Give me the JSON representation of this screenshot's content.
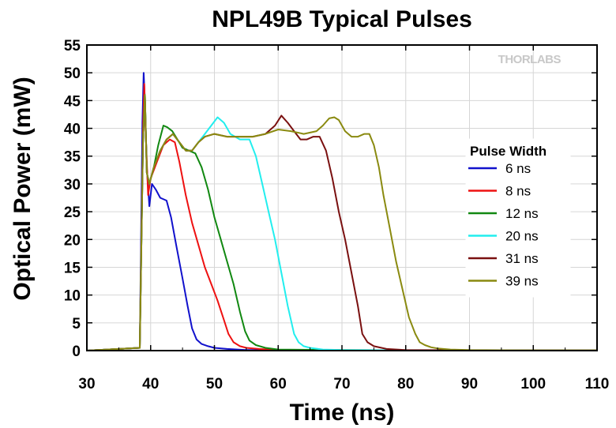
{
  "chart_data": {
    "type": "line",
    "title": "NPL49B Typical Pulses",
    "xlabel": "Time (ns)",
    "ylabel": "Optical Power (mW)",
    "xlim": [
      30,
      110
    ],
    "ylim": [
      0,
      55
    ],
    "xticks": [
      30,
      40,
      50,
      60,
      70,
      80,
      90,
      100,
      110
    ],
    "yticks": [
      0,
      5,
      10,
      15,
      20,
      25,
      30,
      35,
      40,
      45,
      50,
      55
    ],
    "grid": true,
    "legend_title": "Pulse Width",
    "legend_position": "right",
    "watermark": "THORLABS",
    "series": [
      {
        "name": "6 ns",
        "color": "#1111cc",
        "x": [
          30,
          38.3,
          38.7,
          38.9,
          39.1,
          39.4,
          39.8,
          40.2,
          40.8,
          41.5,
          42.5,
          43.2,
          44,
          45,
          45.8,
          46.5,
          47.2,
          48,
          49,
          50,
          52,
          55,
          60,
          70,
          80,
          90,
          100,
          110
        ],
        "y": [
          0,
          0.5,
          41,
          50,
          45,
          33,
          26,
          30,
          29,
          27.5,
          27,
          24,
          19,
          13,
          8,
          4,
          2,
          1.2,
          0.8,
          0.5,
          0.3,
          0.1,
          0.1,
          0.05,
          0.05,
          0.05,
          0.05,
          0.05
        ]
      },
      {
        "name": "8 ns",
        "color": "#ee1111",
        "x": [
          30,
          38.3,
          38.8,
          39,
          39.2,
          39.6,
          40,
          41,
          42,
          43,
          43.8,
          44.5,
          45.5,
          46.5,
          47.5,
          48.5,
          49.5,
          50.5,
          51.5,
          52.2,
          53,
          54,
          55,
          57,
          60,
          70,
          80,
          90,
          100,
          110
        ],
        "y": [
          0,
          0.5,
          40,
          48,
          40,
          28,
          31,
          34,
          37,
          38,
          37.5,
          34,
          28,
          23,
          19,
          15,
          12,
          9,
          5.5,
          3,
          1.5,
          0.8,
          0.5,
          0.3,
          0.1,
          0.05,
          0.05,
          0.05,
          0.05,
          0.05
        ]
      },
      {
        "name": "12 ns",
        "color": "#118811",
        "x": [
          30,
          38.3,
          38.8,
          39.1,
          39.4,
          39.8,
          40.5,
          41.2,
          42,
          42.6,
          43.4,
          44.2,
          45,
          46,
          47,
          48,
          49,
          50,
          51,
          52,
          53,
          54,
          54.8,
          55.5,
          56.5,
          58,
          60,
          70,
          80,
          90,
          100,
          110
        ],
        "y": [
          0,
          0.5,
          38,
          46,
          32,
          30,
          33,
          37,
          40.5,
          40.2,
          39.5,
          38,
          36.5,
          36,
          35.5,
          33,
          29,
          24,
          20,
          16,
          12,
          7,
          3.5,
          1.8,
          1,
          0.5,
          0.2,
          0.1,
          0.05,
          0.05,
          0.05,
          0.05
        ]
      },
      {
        "name": "20 ns",
        "color": "#22eeee",
        "x": [
          30,
          38.3,
          38.8,
          39.1,
          39.4,
          39.8,
          40.5,
          41.5,
          42.5,
          43.5,
          44.5,
          45.5,
          46.5,
          47.5,
          48.5,
          49.5,
          50.5,
          51.5,
          52.5,
          54,
          55.5,
          56.5,
          57.5,
          58.5,
          59.5,
          60.5,
          61.5,
          62.5,
          63.2,
          64,
          65,
          67,
          70,
          80,
          90,
          100,
          110
        ],
        "y": [
          0,
          0.5,
          38,
          46,
          32,
          30,
          33,
          36,
          38,
          39,
          37.5,
          36,
          36,
          37.5,
          39,
          40.5,
          42,
          41,
          39,
          38,
          38,
          35,
          30,
          25,
          20,
          14,
          8,
          3,
          1.5,
          0.8,
          0.5,
          0.2,
          0.1,
          0.05,
          0.05,
          0.05,
          0.05
        ]
      },
      {
        "name": "31 ns",
        "color": "#7a1010",
        "x": [
          30,
          38.3,
          38.8,
          39.1,
          39.4,
          39.8,
          40.5,
          41.5,
          42.5,
          43.5,
          44.5,
          45.5,
          46.5,
          47.5,
          48.5,
          50,
          52,
          54,
          56,
          58,
          59.5,
          60.5,
          61.5,
          62.5,
          63.5,
          64.5,
          65.5,
          66.5,
          67.5,
          68.5,
          69.5,
          70.5,
          71.5,
          72.5,
          73.2,
          74,
          75,
          77,
          80,
          90,
          100,
          110
        ],
        "y": [
          0,
          0.5,
          38,
          46,
          32,
          30,
          33,
          36,
          38,
          39,
          37.5,
          36,
          36,
          37.5,
          38.5,
          39,
          38.5,
          38.5,
          38.5,
          39,
          40.5,
          42.3,
          41,
          39.5,
          38,
          38,
          38.5,
          38.5,
          36,
          31,
          25,
          20,
          14,
          8,
          3,
          1.5,
          0.8,
          0.3,
          0.1,
          0.05,
          0.05,
          0.05
        ]
      },
      {
        "name": "39 ns",
        "color": "#8a8a10",
        "x": [
          30,
          38.3,
          38.8,
          39.1,
          39.4,
          39.8,
          40.5,
          41.5,
          42.5,
          43.5,
          44.5,
          45.5,
          46.5,
          47.5,
          48.5,
          50,
          52,
          54,
          56,
          58,
          60,
          62,
          64,
          66,
          67,
          68,
          68.8,
          69.5,
          70.5,
          71.5,
          72.5,
          73.5,
          74.3,
          75,
          75.8,
          76.5,
          77.5,
          78.5,
          79.5,
          80.5,
          81.5,
          82.2,
          83,
          84,
          85,
          87,
          90,
          100,
          110
        ],
        "y": [
          0,
          0.5,
          38,
          46,
          32,
          30,
          33,
          36,
          38,
          39,
          37.5,
          36,
          36,
          37.5,
          38.5,
          39,
          38.5,
          38.5,
          38.5,
          39,
          39.8,
          39.5,
          39,
          39.5,
          40.5,
          41.8,
          42,
          41.5,
          39.5,
          38.5,
          38.5,
          39,
          39,
          37,
          33,
          28,
          22,
          16,
          11,
          6,
          3,
          1.5,
          1,
          0.6,
          0.4,
          0.2,
          0.1,
          0.05,
          0.05
        ]
      }
    ]
  }
}
